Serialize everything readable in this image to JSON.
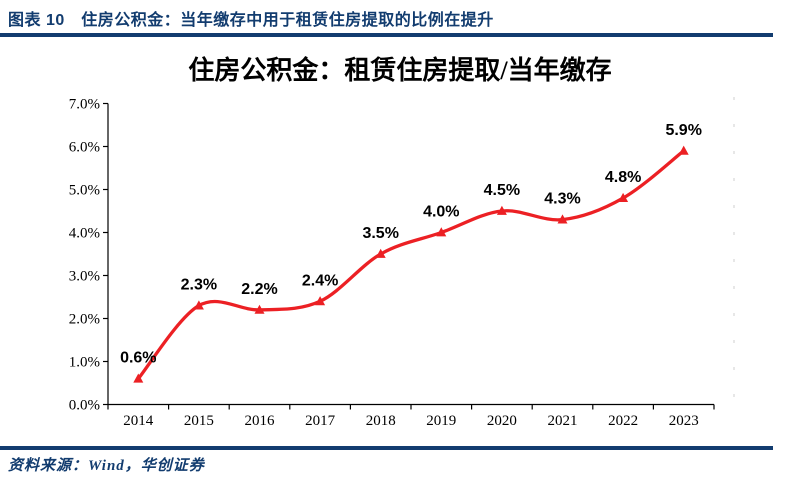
{
  "header": {
    "title": "图表 10　住房公积金：当年缴存中用于租赁住房提取的比例在提升"
  },
  "source": {
    "text": "资料来源：Wind，华创证券"
  },
  "chart_data": {
    "type": "line",
    "title": "住房公积金：租赁住房提取/当年缴存",
    "categories": [
      "2014",
      "2015",
      "2016",
      "2017",
      "2018",
      "2019",
      "2020",
      "2021",
      "2022",
      "2023"
    ],
    "values": [
      0.6,
      2.3,
      2.2,
      2.4,
      3.5,
      4.0,
      4.5,
      4.3,
      4.8,
      5.9
    ],
    "point_labels": [
      "0.6%",
      "2.3%",
      "2.2%",
      "2.4%",
      "3.5%",
      "4.0%",
      "4.5%",
      "4.3%",
      "4.8%",
      "5.9%"
    ],
    "y_tick_labels": [
      "0.0%",
      "1.0%",
      "2.0%",
      "3.0%",
      "4.0%",
      "5.0%",
      "6.0%",
      "7.0%"
    ],
    "ylim": [
      0,
      7
    ],
    "xlabel": "",
    "ylabel": "",
    "grid": false,
    "legend": "none",
    "line_style": "smooth",
    "marker": "triangle-up"
  },
  "colors": {
    "accent_navy": "#123c6f",
    "line_red": "#ec2024",
    "axis_black": "#000000"
  }
}
